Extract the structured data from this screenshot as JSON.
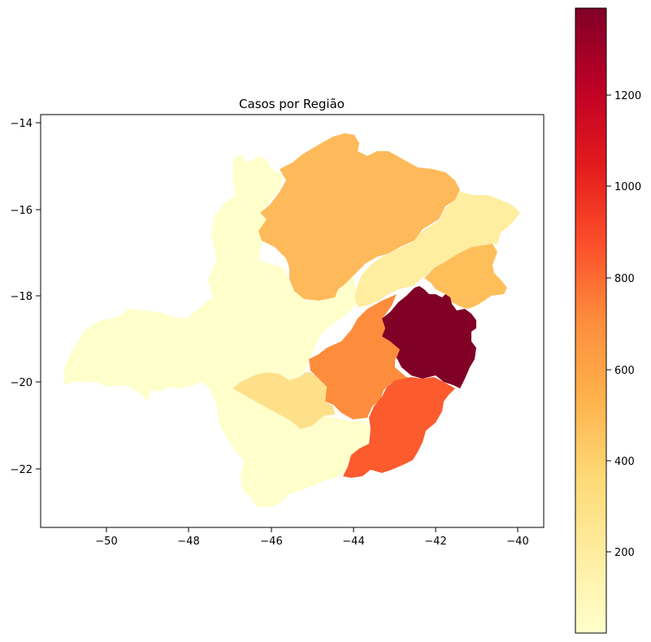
{
  "chart_data": {
    "type": "choropleth",
    "title": "Casos por Região",
    "xlabel": "",
    "ylabel": "",
    "xlim": [
      -51.5,
      -39.3
    ],
    "ylim": [
      -23.4,
      -13.8
    ],
    "x_ticks": [
      -50,
      -48,
      -46,
      -44,
      -42,
      -40
    ],
    "y_ticks": [
      -14,
      -16,
      -18,
      -20,
      -22
    ],
    "x_tick_labels": [
      "−50",
      "−48",
      "−46",
      "−44",
      "−42",
      "−40"
    ],
    "y_tick_labels": [
      "−14",
      "−16",
      "−18",
      "−20",
      "−22"
    ],
    "colormap": "YlOrRd",
    "colorbar": {
      "vmin": 10,
      "vmax": 1390,
      "ticks": [
        200,
        400,
        600,
        800,
        1000,
        1200
      ],
      "tick_labels": [
        "200",
        "400",
        "600",
        "800",
        "1000",
        "1200"
      ]
    },
    "regions": [
      {
        "value": 20,
        "color": "#ffffcc"
      },
      {
        "value": 510,
        "color": "#feba5a"
      },
      {
        "value": 150,
        "color": "#ffeda0"
      },
      {
        "value": 480,
        "color": "#febf5b"
      },
      {
        "value": 700,
        "color": "#fd8d3c"
      },
      {
        "value": 1390,
        "color": "#800026"
      },
      {
        "value": 850,
        "color": "#fc5b2e"
      },
      {
        "value": 260,
        "color": "#fee08b"
      },
      {
        "value": 20,
        "color": "#ffffcc"
      }
    ],
    "grid": false,
    "legend": "colorbar-right"
  }
}
